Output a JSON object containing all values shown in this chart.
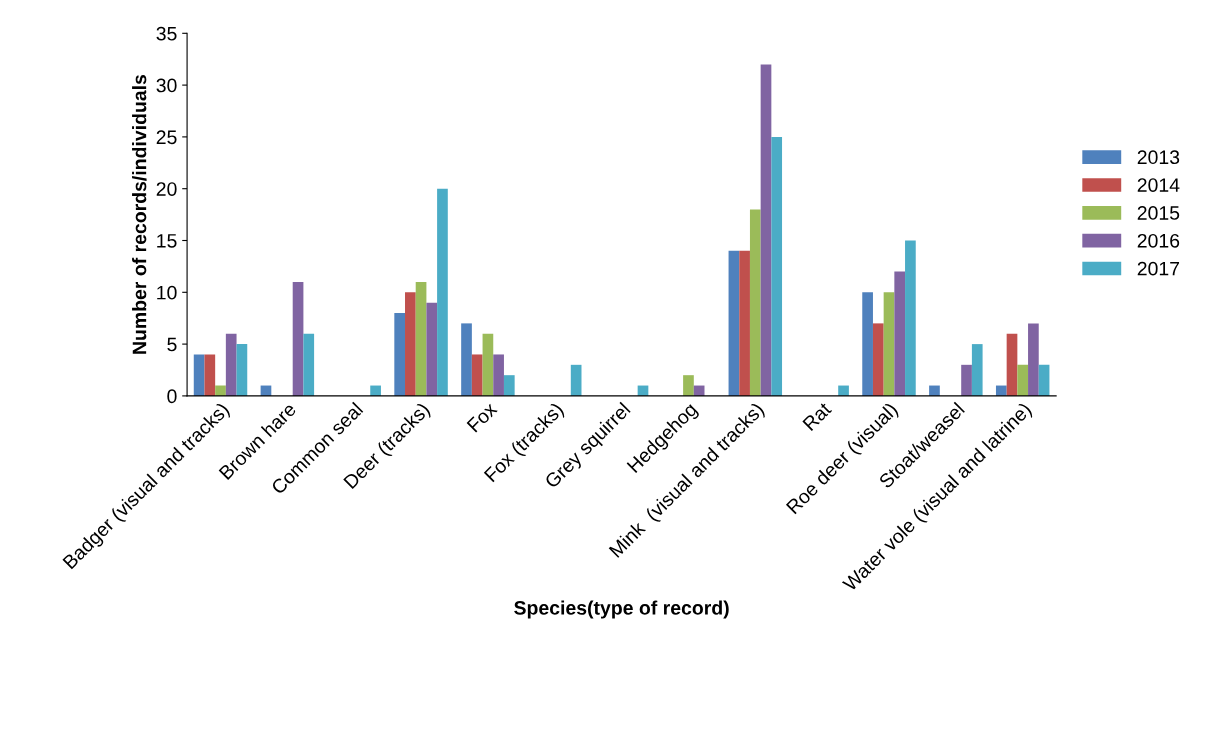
{
  "chart_data": {
    "type": "bar",
    "xlabel": "Species(type of record)",
    "ylabel": "Number of records/individuals",
    "categories": [
      "Badger (visual and tracks)",
      "Brown hare",
      "Common seal",
      "Deer (tracks)",
      "Fox",
      "Fox (tracks)",
      "Grey squirrel",
      "Hedgehog",
      "Mink  (visual and tracks)",
      "Rat",
      "Roe deer (visual)",
      "Stoat/weasel",
      "Water vole (visual and latrine)"
    ],
    "series": [
      {
        "name": "2013",
        "color": "#4f81bd",
        "values": [
          4,
          1,
          0,
          8,
          7,
          0,
          0,
          0,
          14,
          0,
          10,
          1,
          1
        ]
      },
      {
        "name": "2014",
        "color": "#c0504d",
        "values": [
          4,
          0,
          0,
          10,
          4,
          0,
          0,
          0,
          14,
          0,
          7,
          0,
          6
        ]
      },
      {
        "name": "2015",
        "color": "#9bbb59",
        "values": [
          1,
          0,
          0,
          11,
          6,
          0,
          0,
          2,
          18,
          0,
          10,
          0,
          3
        ]
      },
      {
        "name": "2016",
        "color": "#8064a2",
        "values": [
          6,
          11,
          0,
          9,
          4,
          0,
          0,
          1,
          32,
          0,
          12,
          3,
          7
        ]
      },
      {
        "name": "2017",
        "color": "#4bacc6",
        "values": [
          5,
          6,
          1,
          20,
          2,
          3,
          1,
          0,
          25,
          1,
          15,
          5,
          3
        ]
      }
    ],
    "ylim": [
      0,
      35
    ],
    "yticks": [
      0,
      5,
      10,
      15,
      20,
      25,
      30,
      35
    ],
    "grid": false,
    "legend": "right"
  }
}
